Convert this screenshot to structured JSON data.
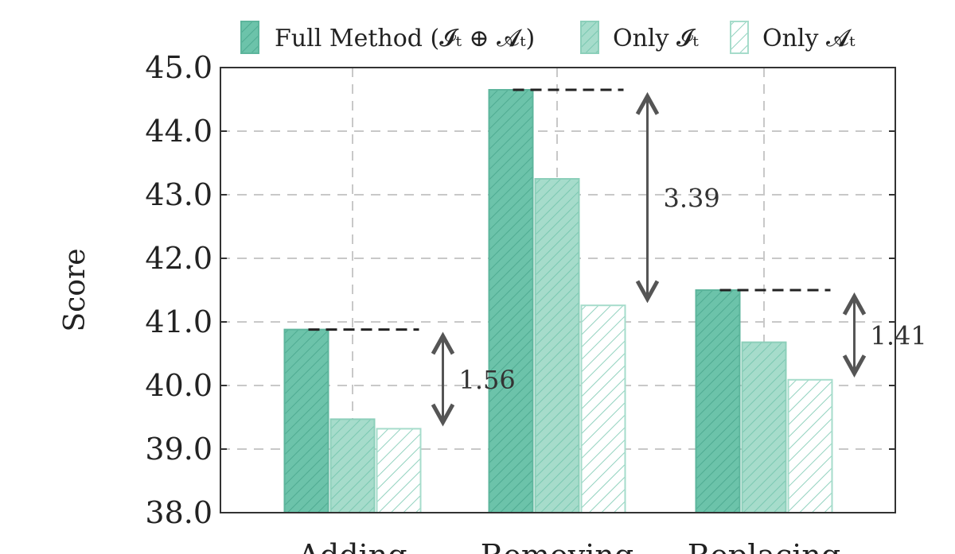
{
  "chart_data": {
    "type": "bar",
    "ylabel": "Score",
    "ylim": [
      38.0,
      45.0
    ],
    "yticks": [
      "38.0",
      "39.0",
      "40.0",
      "41.0",
      "42.0",
      "43.0",
      "44.0",
      "45.0"
    ],
    "categories": [
      "Adding",
      "Removing",
      "Replacing"
    ],
    "series": [
      {
        "name": "Full Method (𝓘ₜ ⊕ 𝓐ₜ)",
        "values": [
          40.88,
          44.65,
          41.5
        ],
        "color": "#6cc3aa",
        "pattern": "dense"
      },
      {
        "name": "Only 𝓘ₜ",
        "values": [
          39.47,
          43.25,
          40.68
        ],
        "color": "#a6dccb",
        "pattern": "medium"
      },
      {
        "name": "Only 𝓐ₜ",
        "values": [
          39.32,
          41.26,
          40.09
        ],
        "color": "#ffffff",
        "pattern": "sparse"
      }
    ],
    "annotations": [
      {
        "category": "Adding",
        "text": "1.56"
      },
      {
        "category": "Removing",
        "text": "3.39"
      },
      {
        "category": "Replacing",
        "text": "1.41"
      }
    ],
    "grid": true,
    "legend_position": "top"
  }
}
